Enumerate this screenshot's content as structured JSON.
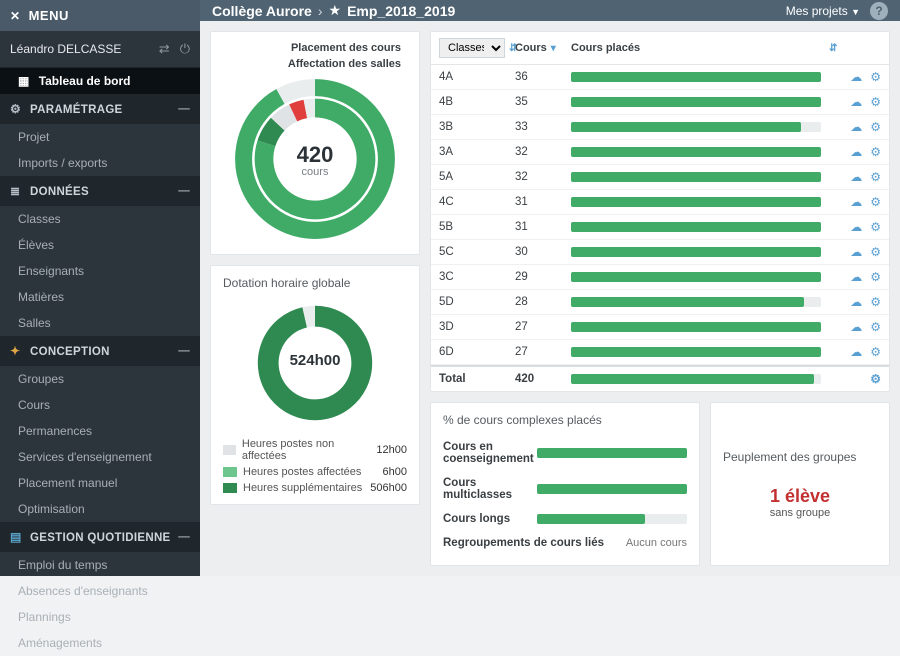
{
  "colors": {
    "sidebar_bg": "#2d353c",
    "topbar_bg": "#4f6372",
    "accent_green": "#3fab67",
    "accent_green_dark": "#2e8a50",
    "accent_green_light": "#9bd8b0",
    "accent_red": "#c23030",
    "accent_blue": "#5a9fd1",
    "accent_orange": "#e0a546",
    "bar_track": "#e9edee"
  },
  "sidebar": {
    "menu_label": "MENU",
    "user_name": "Léandro DELCASSE",
    "items": {
      "dashboard": "Tableau de bord"
    },
    "sections": {
      "parametrage": {
        "title": "PARAMÉTRAGE",
        "items": [
          "Projet",
          "Imports / exports"
        ]
      },
      "donnees": {
        "title": "DONNÉES",
        "items": [
          "Classes",
          "Élèves",
          "Enseignants",
          "Matières",
          "Salles"
        ]
      },
      "conception": {
        "title": "CONCEPTION",
        "items": [
          "Groupes",
          "Cours",
          "Permanences",
          "Services d'enseignement",
          "Placement manuel",
          "Optimisation"
        ]
      },
      "gestion": {
        "title": "GESTION QUOTIDIENNE",
        "items": [
          "Emploi du temps",
          "Absences d'enseignants",
          "Plannings",
          "Aménagements"
        ]
      }
    }
  },
  "topbar": {
    "breadcrumb_root": "Collège Aurore",
    "breadcrumb_leaf": "Emp_2018_2019",
    "projects_label": "Mes projets"
  },
  "donut_placement": {
    "legend_top": "Placement des cours",
    "legend_bottom": "Affectation des salles",
    "center_value": "420",
    "center_label": "cours",
    "outer_ring": {
      "pct_green": 92,
      "color": "#3fab67"
    },
    "inner_ring": {
      "segments": [
        {
          "pct": 80,
          "color": "#3fab67"
        },
        {
          "pct": 7,
          "color": "#2e8a50"
        },
        {
          "pct": 6,
          "color": "#dfe3e5"
        },
        {
          "pct": 4,
          "color": "#e03d3d"
        },
        {
          "pct": 3,
          "color": "#e9edee"
        }
      ]
    }
  },
  "donut_hours": {
    "title": "Dotation horaire globale",
    "center_value": "524h00",
    "segments": [
      {
        "pct": 96.5,
        "color": "#2e8a50"
      },
      {
        "pct": 3.5,
        "color": "#e9edee"
      }
    ],
    "legend": [
      {
        "sw": "#dfe3e5",
        "label": "Heures postes non affectées",
        "val": "12h00"
      },
      {
        "sw": "#6fc58e",
        "label": "Heures postes affectées",
        "val": "6h00"
      },
      {
        "sw": "#2e8a50",
        "label": "Heures supplémentaires",
        "val": "506h00"
      }
    ]
  },
  "table": {
    "col_select_label": "Classes",
    "col_cours": "Cours",
    "col_placed": "Cours placés",
    "rows": [
      {
        "cls": "4A",
        "n": 36,
        "pct": 100
      },
      {
        "cls": "4B",
        "n": 35,
        "pct": 100
      },
      {
        "cls": "3B",
        "n": 33,
        "pct": 92
      },
      {
        "cls": "3A",
        "n": 32,
        "pct": 100
      },
      {
        "cls": "5A",
        "n": 32,
        "pct": 100
      },
      {
        "cls": "4C",
        "n": 31,
        "pct": 100
      },
      {
        "cls": "5B",
        "n": 31,
        "pct": 100
      },
      {
        "cls": "5C",
        "n": 30,
        "pct": 100
      },
      {
        "cls": "3C",
        "n": 29,
        "pct": 100
      },
      {
        "cls": "5D",
        "n": 28,
        "pct": 93
      },
      {
        "cls": "3D",
        "n": 27,
        "pct": 100
      },
      {
        "cls": "6D",
        "n": 27,
        "pct": 100
      }
    ],
    "total_label": "Total",
    "total_n": "420",
    "total_pct": 97
  },
  "complex": {
    "title": "% de cours complexes placés",
    "rows": [
      {
        "label": "Cours en coenseignement",
        "pct": 100
      },
      {
        "label": "Cours multiclasses",
        "pct": 100
      },
      {
        "label": "Cours longs",
        "pct": 72
      }
    ],
    "regroup_label": "Regroupements de cours liés",
    "regroup_value": "Aucun cours"
  },
  "groups": {
    "title": "Peuplement des groupes",
    "big": "1 élève",
    "sub": "sans groupe"
  }
}
